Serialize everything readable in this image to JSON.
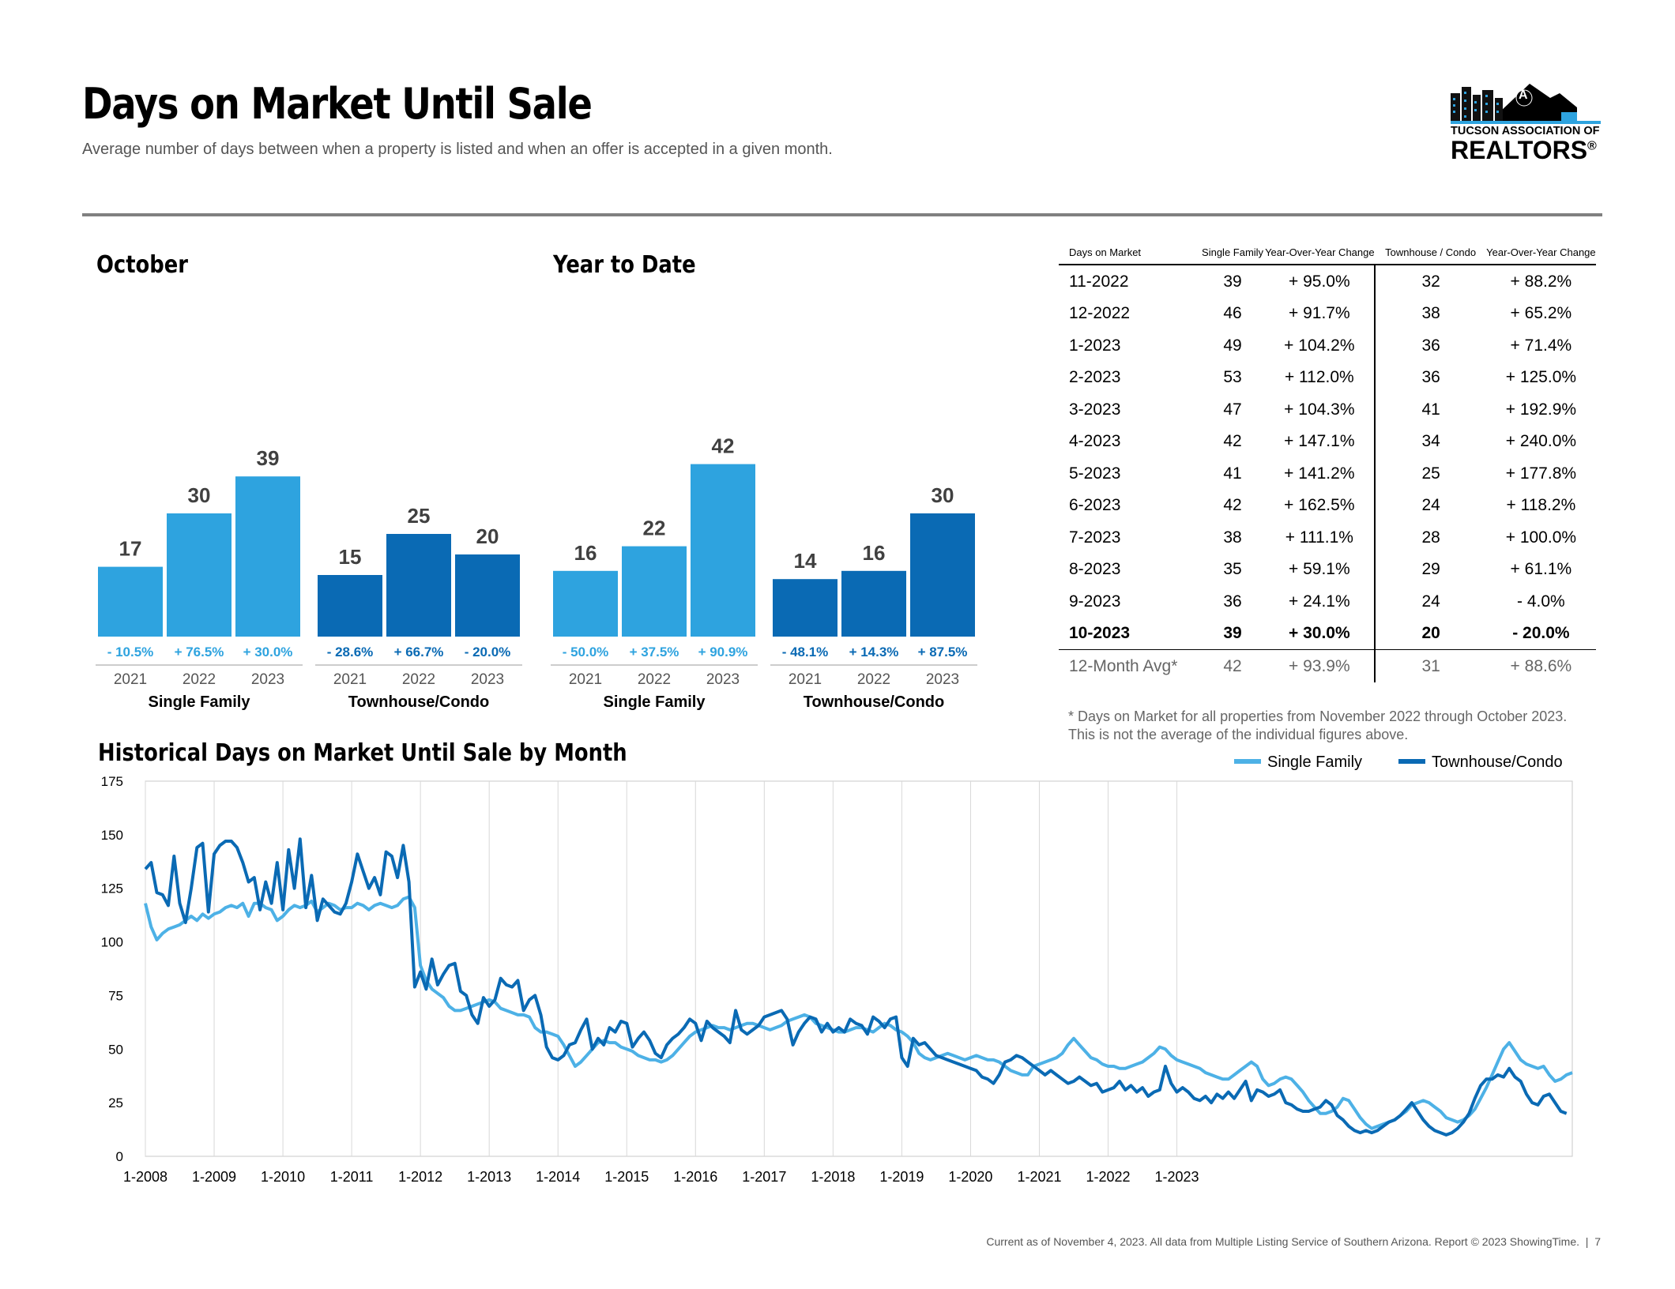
{
  "header": {
    "title": "Days on Market Until Sale",
    "subtitle": "Average number of days between when a property is listed and when an offer is accepted in a given month."
  },
  "logo": {
    "line1": "TUCSON ASSOCIATION OF",
    "line2": "REALTORS",
    "mark": "®",
    "badge": "A"
  },
  "colors": {
    "single_family": "#2ea3df",
    "townhouse": "#0a6ab4",
    "single_family_line": "#4db1e6",
    "townhouse_line": "#0a6ab4",
    "rule": "#808080"
  },
  "sections": {
    "october": "October",
    "ytd": "Year to Date",
    "historical": "Historical Days on Market Until Sale by Month"
  },
  "chart_data": [
    {
      "type": "bar",
      "title": "October",
      "groups": [
        {
          "name": "Single Family",
          "categories": [
            "2021",
            "2022",
            "2023"
          ],
          "values": [
            17,
            30,
            39
          ],
          "changes": [
            "- 10.5%",
            "+ 76.5%",
            "+ 30.0%"
          ]
        },
        {
          "name": "Townhouse/Condo",
          "categories": [
            "2021",
            "2022",
            "2023"
          ],
          "values": [
            15,
            25,
            20
          ],
          "changes": [
            "- 28.6%",
            "+ 66.7%",
            "- 20.0%"
          ]
        }
      ]
    },
    {
      "type": "bar",
      "title": "Year to Date",
      "groups": [
        {
          "name": "Single Family",
          "categories": [
            "2021",
            "2022",
            "2023"
          ],
          "values": [
            16,
            22,
            42
          ],
          "changes": [
            "- 50.0%",
            "+ 37.5%",
            "+ 90.9%"
          ]
        },
        {
          "name": "Townhouse/Condo",
          "categories": [
            "2021",
            "2022",
            "2023"
          ],
          "values": [
            14,
            16,
            30
          ],
          "changes": [
            "- 48.1%",
            "+ 14.3%",
            "+ 87.5%"
          ]
        }
      ]
    },
    {
      "type": "line",
      "title": "Historical Days on Market Until Sale by Month",
      "ylim": [
        0,
        175
      ],
      "yticks": [
        0,
        25,
        50,
        75,
        100,
        125,
        150,
        175
      ],
      "xticks": [
        "1-2008",
        "1-2009",
        "1-2010",
        "1-2011",
        "1-2012",
        "1-2013",
        "1-2014",
        "1-2015",
        "1-2016",
        "1-2017",
        "1-2018",
        "1-2019",
        "1-2020",
        "1-2021",
        "1-2022",
        "1-2023"
      ],
      "x_start": "1-2008",
      "legend_position": "top-right",
      "grid": "vertical",
      "series": [
        {
          "name": "Single Family",
          "values": [
            118,
            107,
            101,
            104,
            106,
            107,
            108,
            110,
            112,
            110,
            113,
            111,
            113,
            114,
            116,
            117,
            116,
            118,
            112,
            118,
            118,
            116,
            115,
            110,
            112,
            115,
            117,
            116,
            117,
            119,
            114,
            116,
            118,
            117,
            115,
            116,
            116,
            118,
            117,
            115,
            117,
            118,
            117,
            116,
            117,
            120,
            121,
            116,
            89,
            82,
            78,
            76,
            74,
            70,
            68,
            68,
            69,
            70,
            71,
            72,
            73,
            72,
            69,
            68,
            67,
            66,
            66,
            65,
            60,
            58,
            58,
            57,
            56,
            52,
            47,
            42,
            44,
            47,
            50,
            53,
            54,
            53,
            53,
            51,
            50,
            49,
            47,
            46,
            45,
            45,
            44,
            45,
            47,
            50,
            53,
            56,
            58,
            59,
            60,
            61,
            60,
            60,
            59,
            60,
            61,
            62,
            62,
            61,
            60,
            59,
            60,
            61,
            63,
            64,
            65,
            66,
            65,
            62,
            61,
            60,
            59,
            58,
            58,
            59,
            60,
            60,
            59,
            58,
            60,
            62,
            61,
            59,
            58,
            56,
            53,
            48,
            46,
            45,
            46,
            47,
            48,
            47,
            46,
            45,
            46,
            47,
            46,
            45,
            45,
            44,
            42,
            40,
            39,
            38,
            38,
            42,
            43,
            44,
            45,
            46,
            48,
            52,
            55,
            52,
            49,
            46,
            45,
            43,
            42,
            42,
            41,
            41,
            42,
            43,
            44,
            46,
            48,
            51,
            50,
            47,
            45,
            44,
            43,
            42,
            41,
            39,
            38,
            37,
            36,
            36,
            38,
            40,
            42,
            44,
            42,
            36,
            33,
            34,
            36,
            37,
            36,
            33,
            30,
            26,
            23,
            20,
            20,
            21,
            23,
            27,
            26,
            22,
            18,
            15,
            13,
            14,
            15,
            16,
            17,
            19,
            21,
            24,
            25,
            26,
            25,
            23,
            21,
            18,
            17,
            16,
            17,
            19,
            22,
            27,
            32,
            38,
            44,
            50,
            53,
            49,
            45,
            43,
            42,
            41,
            42,
            38,
            35,
            36,
            38,
            39
          ]
        },
        {
          "name": "Townhouse/Condo",
          "values": [
            134,
            137,
            123,
            122,
            117,
            140,
            118,
            109,
            125,
            144,
            146,
            114,
            141,
            145,
            147,
            147,
            144,
            137,
            128,
            130,
            115,
            128,
            118,
            137,
            115,
            143,
            125,
            148,
            116,
            131,
            110,
            120,
            117,
            114,
            113,
            118,
            128,
            141,
            133,
            125,
            130,
            122,
            142,
            140,
            130,
            145,
            128,
            79,
            86,
            78,
            92,
            80,
            85,
            89,
            90,
            77,
            75,
            66,
            62,
            74,
            70,
            73,
            83,
            80,
            79,
            82,
            68,
            73,
            75,
            66,
            51,
            46,
            45,
            47,
            52,
            53,
            59,
            64,
            50,
            55,
            52,
            60,
            58,
            63,
            62,
            51,
            55,
            58,
            54,
            48,
            46,
            52,
            55,
            57,
            60,
            64,
            62,
            54,
            63,
            60,
            58,
            56,
            53,
            68,
            59,
            57,
            59,
            61,
            65,
            66,
            67,
            68,
            64,
            52,
            58,
            62,
            65,
            64,
            58,
            62,
            58,
            60,
            58,
            64,
            62,
            61,
            57,
            65,
            63,
            60,
            64,
            65,
            46,
            42,
            55,
            52,
            53,
            50,
            47,
            46,
            45,
            44,
            43,
            42,
            41,
            40,
            37,
            36,
            34,
            38,
            44,
            45,
            47,
            46,
            44,
            42,
            40,
            38,
            40,
            38,
            36,
            34,
            35,
            37,
            35,
            33,
            34,
            30,
            31,
            32,
            35,
            31,
            33,
            30,
            32,
            28,
            30,
            31,
            42,
            34,
            30,
            32,
            30,
            27,
            26,
            28,
            25,
            29,
            27,
            30,
            27,
            31,
            35,
            26,
            31,
            30,
            28,
            29,
            31,
            25,
            24,
            22,
            21,
            21,
            22,
            23,
            26,
            24,
            19,
            17,
            14,
            12,
            11,
            12,
            11,
            12,
            14,
            16,
            17,
            19,
            22,
            25,
            21,
            17,
            14,
            12,
            11,
            10,
            11,
            13,
            16,
            20,
            27,
            33,
            36,
            36,
            38,
            37,
            41,
            37,
            35,
            29,
            25,
            24,
            28,
            29,
            25,
            21,
            20
          ]
        }
      ]
    }
  ],
  "table": {
    "headers": [
      "Days on Market",
      "Single Family",
      "Year-Over-Year Change",
      "Townhouse / Condo",
      "Year-Over-Year Change"
    ],
    "rows": [
      [
        "11-2022",
        "39",
        "+ 95.0%",
        "32",
        "+ 88.2%"
      ],
      [
        "12-2022",
        "46",
        "+ 91.7%",
        "38",
        "+ 65.2%"
      ],
      [
        "1-2023",
        "49",
        "+ 104.2%",
        "36",
        "+ 71.4%"
      ],
      [
        "2-2023",
        "53",
        "+ 112.0%",
        "36",
        "+ 125.0%"
      ],
      [
        "3-2023",
        "47",
        "+ 104.3%",
        "41",
        "+ 192.9%"
      ],
      [
        "4-2023",
        "42",
        "+ 147.1%",
        "34",
        "+ 240.0%"
      ],
      [
        "5-2023",
        "41",
        "+ 141.2%",
        "25",
        "+ 177.8%"
      ],
      [
        "6-2023",
        "42",
        "+ 162.5%",
        "24",
        "+ 118.2%"
      ],
      [
        "7-2023",
        "38",
        "+ 111.1%",
        "28",
        "+ 100.0%"
      ],
      [
        "8-2023",
        "35",
        "+ 59.1%",
        "29",
        "+ 61.1%"
      ],
      [
        "9-2023",
        "36",
        "+ 24.1%",
        "24",
        "- 4.0%"
      ],
      [
        "10-2023",
        "39",
        "+ 30.0%",
        "20",
        "- 20.0%"
      ]
    ],
    "avg_row": [
      "12-Month Avg*",
      "42",
      "+ 93.9%",
      "31",
      "+ 88.6%"
    ],
    "note": "* Days on Market for all properties from November 2022 through October 2023. This is not the average of the individual figures above."
  },
  "footer": {
    "text": "Current as of November 4, 2023. All data from Multiple Listing Service of Southern Arizona. Report © 2023 ShowingTime.",
    "page": "7"
  }
}
